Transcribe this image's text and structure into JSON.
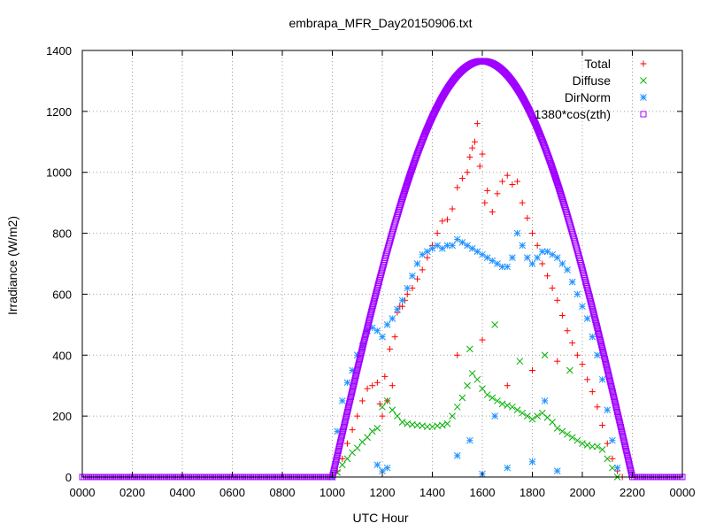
{
  "chart_data": {
    "type": "scatter",
    "title": "embrapa_MFR_Day20150906.txt",
    "xlabel": "UTC Hour",
    "ylabel": "Irradiance (W/m2)",
    "xlim": [
      0,
      24
    ],
    "ylim": [
      0,
      1400
    ],
    "x_ticks": [
      "0000",
      "0200",
      "0400",
      "0600",
      "0800",
      "1000",
      "1200",
      "1400",
      "1600",
      "1800",
      "2000",
      "2200",
      "0000"
    ],
    "y_ticks": [
      "0",
      "200",
      "400",
      "600",
      "800",
      "1000",
      "1200",
      "1400"
    ],
    "grid": true,
    "legend_position": "top-right",
    "series": [
      {
        "name": "Total",
        "color": "#ff0000",
        "marker": "plus",
        "points": [
          [
            10.0,
            0
          ],
          [
            10.2,
            20
          ],
          [
            10.4,
            60
          ],
          [
            10.6,
            110
          ],
          [
            10.8,
            155
          ],
          [
            11.0,
            200
          ],
          [
            11.2,
            250
          ],
          [
            11.4,
            290
          ],
          [
            11.6,
            300
          ],
          [
            11.8,
            310
          ],
          [
            11.9,
            240
          ],
          [
            12.0,
            200
          ],
          [
            12.1,
            330
          ],
          [
            12.2,
            250
          ],
          [
            12.3,
            420
          ],
          [
            12.4,
            300
          ],
          [
            12.5,
            460
          ],
          [
            12.6,
            540
          ],
          [
            12.7,
            560
          ],
          [
            12.8,
            560
          ],
          [
            12.9,
            580
          ],
          [
            13.0,
            600
          ],
          [
            13.2,
            620
          ],
          [
            13.4,
            650
          ],
          [
            13.6,
            680
          ],
          [
            13.8,
            720
          ],
          [
            14.0,
            760
          ],
          [
            14.2,
            800
          ],
          [
            14.4,
            840
          ],
          [
            14.6,
            845
          ],
          [
            14.8,
            880
          ],
          [
            15.0,
            950
          ],
          [
            15.2,
            980
          ],
          [
            15.4,
            1000
          ],
          [
            15.5,
            1050
          ],
          [
            15.6,
            1080
          ],
          [
            15.7,
            1100
          ],
          [
            15.8,
            1160
          ],
          [
            15.9,
            1020
          ],
          [
            16.0,
            1060
          ],
          [
            16.1,
            900
          ],
          [
            16.2,
            940
          ],
          [
            16.4,
            870
          ],
          [
            16.6,
            930
          ],
          [
            16.8,
            970
          ],
          [
            17.0,
            990
          ],
          [
            17.2,
            960
          ],
          [
            17.4,
            970
          ],
          [
            17.6,
            900
          ],
          [
            17.8,
            850
          ],
          [
            18.0,
            800
          ],
          [
            18.2,
            760
          ],
          [
            18.4,
            700
          ],
          [
            18.6,
            660
          ],
          [
            18.8,
            620
          ],
          [
            19.0,
            580
          ],
          [
            19.2,
            530
          ],
          [
            19.4,
            480
          ],
          [
            19.6,
            440
          ],
          [
            19.8,
            400
          ],
          [
            20.0,
            370
          ],
          [
            20.2,
            320
          ],
          [
            20.4,
            280
          ],
          [
            20.6,
            230
          ],
          [
            20.8,
            170
          ],
          [
            21.0,
            110
          ],
          [
            21.2,
            60
          ],
          [
            21.4,
            20
          ],
          [
            21.6,
            0
          ],
          [
            15.0,
            400
          ],
          [
            16.0,
            450
          ],
          [
            17.0,
            300
          ],
          [
            18.0,
            350
          ],
          [
            19.0,
            380
          ]
        ]
      },
      {
        "name": "Diffuse",
        "color": "#00b000",
        "marker": "cross",
        "points": [
          [
            10.0,
            0
          ],
          [
            10.2,
            15
          ],
          [
            10.4,
            40
          ],
          [
            10.6,
            60
          ],
          [
            10.8,
            80
          ],
          [
            11.0,
            95
          ],
          [
            11.2,
            115
          ],
          [
            11.4,
            130
          ],
          [
            11.6,
            150
          ],
          [
            11.8,
            160
          ],
          [
            12.0,
            230
          ],
          [
            12.2,
            250
          ],
          [
            12.4,
            220
          ],
          [
            12.6,
            200
          ],
          [
            12.8,
            180
          ],
          [
            13.0,
            175
          ],
          [
            13.2,
            172
          ],
          [
            13.4,
            170
          ],
          [
            13.6,
            168
          ],
          [
            13.8,
            165
          ],
          [
            14.0,
            165
          ],
          [
            14.2,
            168
          ],
          [
            14.4,
            170
          ],
          [
            14.6,
            175
          ],
          [
            14.8,
            200
          ],
          [
            15.0,
            230
          ],
          [
            15.2,
            260
          ],
          [
            15.4,
            300
          ],
          [
            15.6,
            340
          ],
          [
            15.8,
            320
          ],
          [
            16.0,
            290
          ],
          [
            16.2,
            270
          ],
          [
            16.4,
            260
          ],
          [
            16.6,
            250
          ],
          [
            16.8,
            240
          ],
          [
            17.0,
            235
          ],
          [
            17.2,
            230
          ],
          [
            17.4,
            220
          ],
          [
            17.6,
            210
          ],
          [
            17.8,
            200
          ],
          [
            18.0,
            190
          ],
          [
            18.2,
            200
          ],
          [
            18.4,
            210
          ],
          [
            18.6,
            195
          ],
          [
            18.8,
            180
          ],
          [
            19.0,
            160
          ],
          [
            19.2,
            150
          ],
          [
            19.4,
            140
          ],
          [
            19.6,
            130
          ],
          [
            19.8,
            120
          ],
          [
            20.0,
            110
          ],
          [
            20.2,
            105
          ],
          [
            20.4,
            100
          ],
          [
            20.6,
            100
          ],
          [
            20.8,
            90
          ],
          [
            21.0,
            60
          ],
          [
            21.2,
            30
          ],
          [
            21.4,
            0
          ],
          [
            15.5,
            420
          ],
          [
            16.5,
            500
          ],
          [
            17.5,
            380
          ],
          [
            18.5,
            400
          ],
          [
            19.5,
            350
          ]
        ]
      },
      {
        "name": "DirNorm",
        "color": "#1e90ff",
        "marker": "star",
        "points": [
          [
            10.0,
            0
          ],
          [
            10.2,
            150
          ],
          [
            10.4,
            250
          ],
          [
            10.6,
            310
          ],
          [
            10.8,
            350
          ],
          [
            11.0,
            400
          ],
          [
            11.2,
            430
          ],
          [
            11.4,
            480
          ],
          [
            11.6,
            490
          ],
          [
            11.8,
            480
          ],
          [
            12.0,
            460
          ],
          [
            12.2,
            500
          ],
          [
            12.4,
            520
          ],
          [
            12.6,
            550
          ],
          [
            12.8,
            580
          ],
          [
            13.0,
            620
          ],
          [
            13.2,
            660
          ],
          [
            13.4,
            700
          ],
          [
            13.6,
            730
          ],
          [
            13.8,
            740
          ],
          [
            14.0,
            750
          ],
          [
            14.2,
            760
          ],
          [
            14.4,
            750
          ],
          [
            14.6,
            760
          ],
          [
            14.8,
            760
          ],
          [
            15.0,
            780
          ],
          [
            15.2,
            770
          ],
          [
            15.4,
            760
          ],
          [
            15.6,
            750
          ],
          [
            15.8,
            740
          ],
          [
            16.0,
            730
          ],
          [
            16.2,
            720
          ],
          [
            16.4,
            710
          ],
          [
            16.6,
            700
          ],
          [
            16.8,
            690
          ],
          [
            17.0,
            690
          ],
          [
            17.2,
            720
          ],
          [
            17.4,
            800
          ],
          [
            17.6,
            760
          ],
          [
            17.8,
            720
          ],
          [
            18.0,
            700
          ],
          [
            18.2,
            720
          ],
          [
            18.4,
            740
          ],
          [
            18.6,
            740
          ],
          [
            18.8,
            730
          ],
          [
            19.0,
            720
          ],
          [
            19.2,
            700
          ],
          [
            19.4,
            680
          ],
          [
            19.6,
            640
          ],
          [
            19.8,
            600
          ],
          [
            20.0,
            560
          ],
          [
            20.2,
            520
          ],
          [
            20.4,
            460
          ],
          [
            20.6,
            400
          ],
          [
            20.8,
            320
          ],
          [
            21.0,
            220
          ],
          [
            21.2,
            120
          ],
          [
            21.4,
            30
          ],
          [
            11.8,
            40
          ],
          [
            12.0,
            20
          ],
          [
            12.2,
            30
          ],
          [
            15.0,
            70
          ],
          [
            16.0,
            10
          ],
          [
            17.0,
            30
          ],
          [
            18.0,
            50
          ],
          [
            19.0,
            20
          ],
          [
            15.5,
            120
          ],
          [
            16.5,
            200
          ],
          [
            18.5,
            250
          ]
        ]
      },
      {
        "name": "1380*cos(zth)",
        "color": "#a000ff",
        "marker": "square",
        "model": "cosine",
        "start": 10.0,
        "end": 22.0,
        "peak": 1365,
        "peak_x": 16.0
      }
    ]
  }
}
